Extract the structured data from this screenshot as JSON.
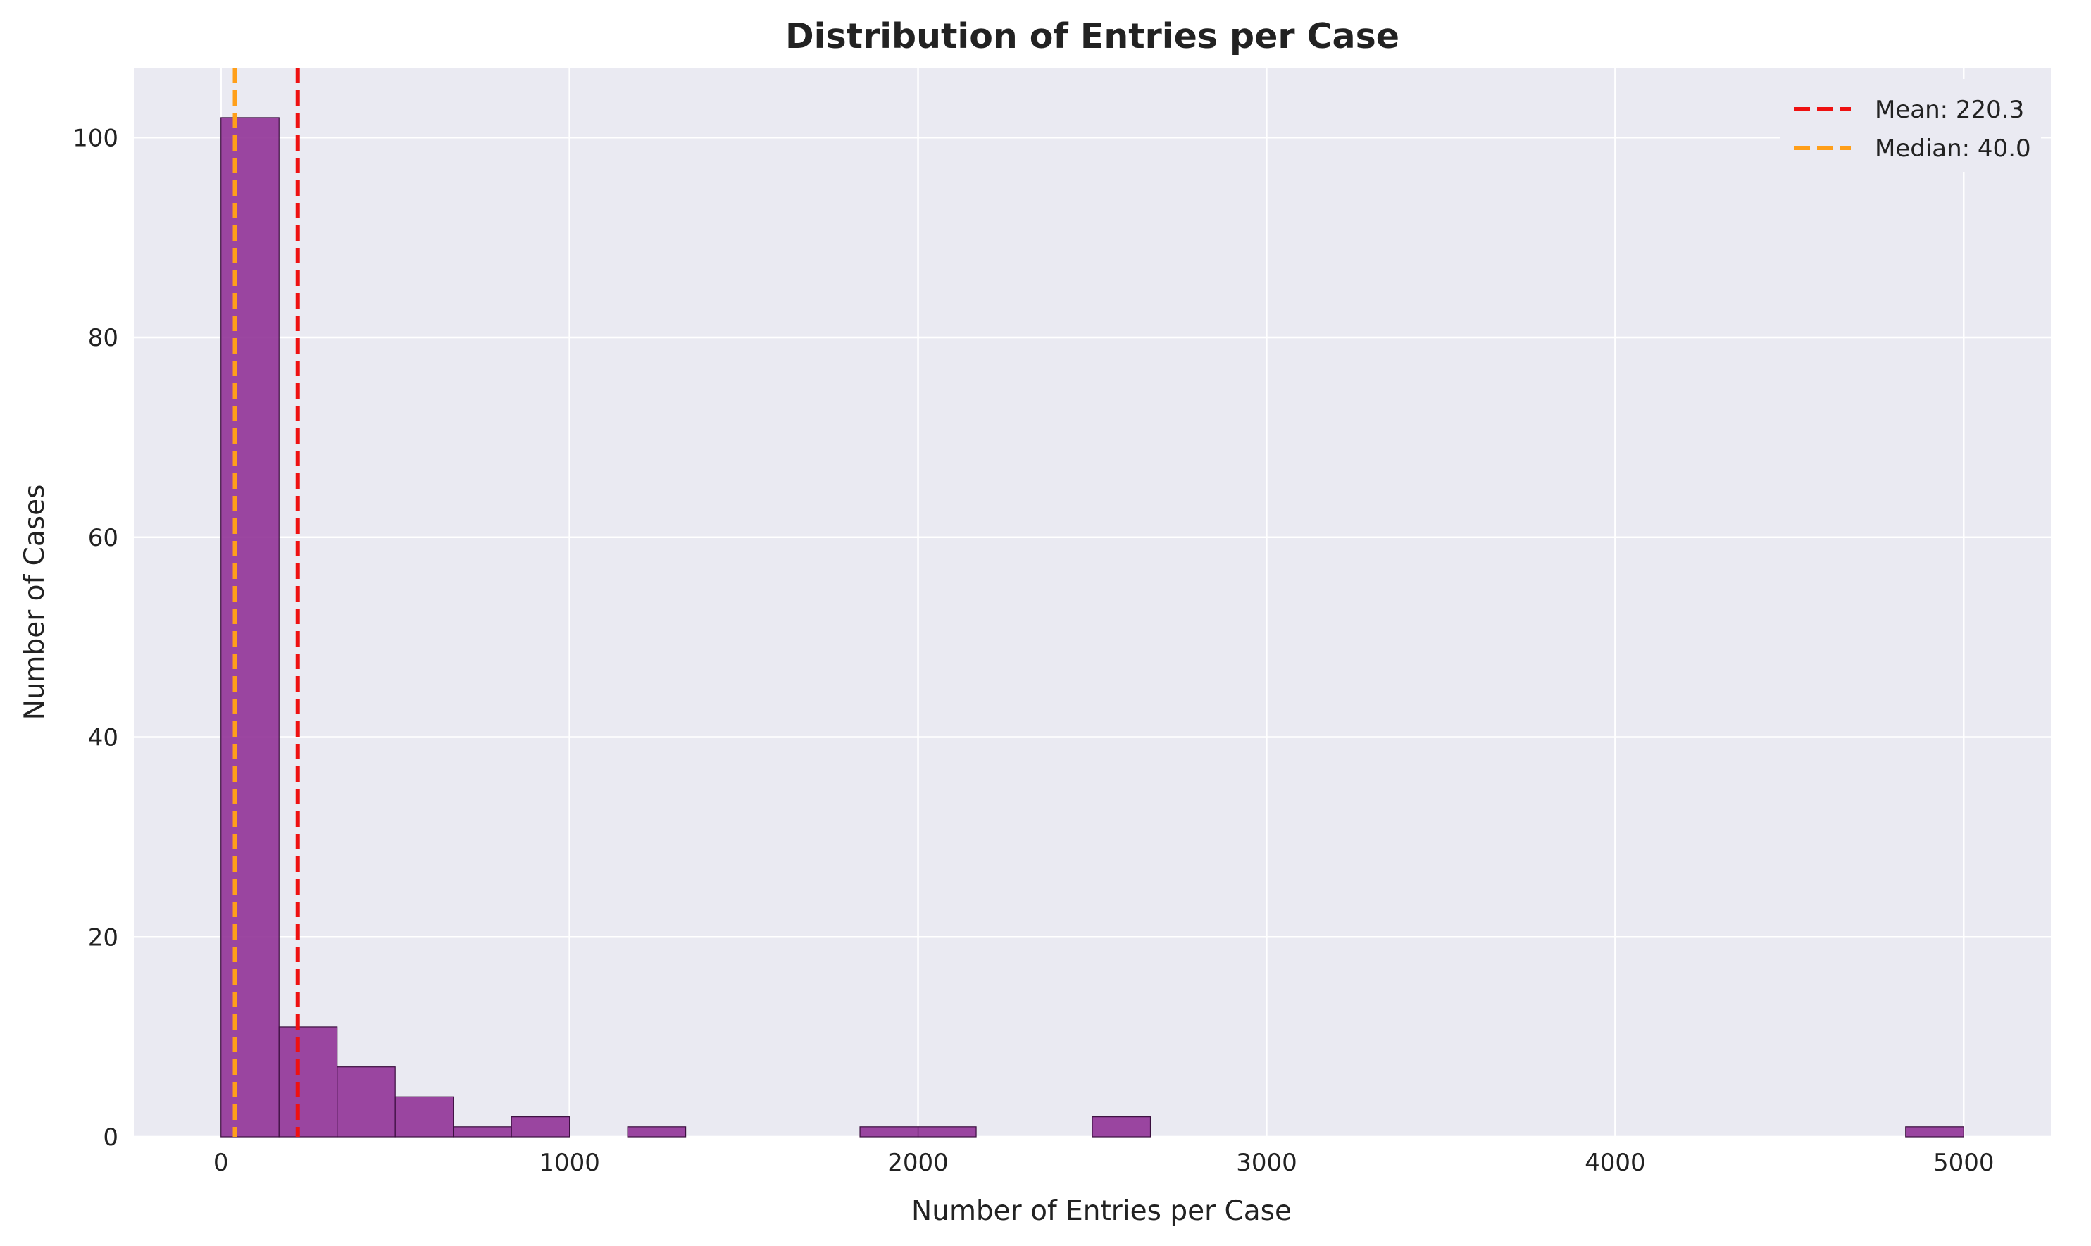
{
  "chart_data": {
    "type": "bar",
    "subtype": "histogram",
    "title": "Distribution of Entries per Case",
    "xlabel": "Number of Entries per Case",
    "ylabel": "Number of Cases",
    "xlim": [
      -250,
      5250
    ],
    "ylim": [
      0,
      107
    ],
    "xticks": [
      0,
      1000,
      2000,
      3000,
      4000,
      5000
    ],
    "yticks": [
      0,
      20,
      40,
      60,
      80,
      100
    ],
    "bin_width": 166.7,
    "bins": [
      {
        "x0": 0,
        "x1": 166.7,
        "count": 102
      },
      {
        "x0": 166.7,
        "x1": 333.3,
        "count": 11
      },
      {
        "x0": 333.3,
        "x1": 500,
        "count": 7
      },
      {
        "x0": 500,
        "x1": 666.7,
        "count": 4
      },
      {
        "x0": 666.7,
        "x1": 833.3,
        "count": 1
      },
      {
        "x0": 833.3,
        "x1": 1000,
        "count": 2
      },
      {
        "x0": 1166.7,
        "x1": 1333.3,
        "count": 1
      },
      {
        "x0": 1833.3,
        "x1": 2000,
        "count": 1
      },
      {
        "x0": 2000,
        "x1": 2166.7,
        "count": 1
      },
      {
        "x0": 2500,
        "x1": 2666.7,
        "count": 2
      },
      {
        "x0": 4833.3,
        "x1": 5000,
        "count": 1
      }
    ],
    "bar_color": "#8e2d94",
    "reference_lines": [
      {
        "name": "Mean: 220.3",
        "value": 220.3,
        "color": "#ee1111",
        "style": "dashed"
      },
      {
        "name": "Median: 40.0",
        "value": 40.0,
        "color": "#ff9f1a",
        "style": "dashed"
      }
    ],
    "legend": "top-right",
    "grid": true,
    "background_color": "#eaeaf2"
  }
}
